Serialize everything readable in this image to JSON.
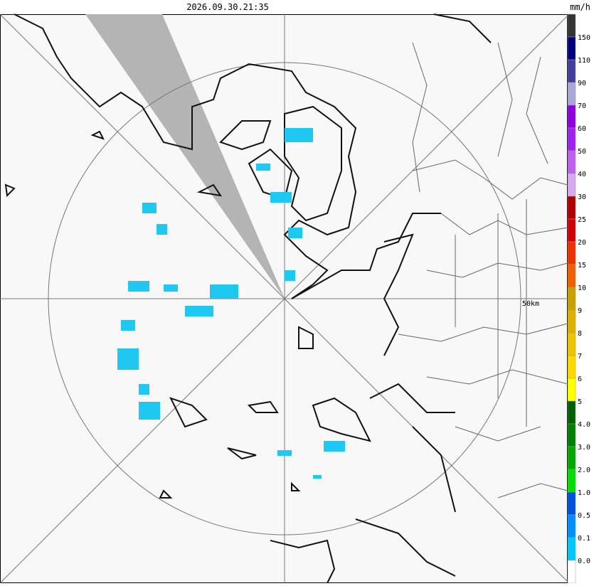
{
  "header": {
    "timestamp": "2026.09.30.21:35",
    "unit": "mm/h"
  },
  "map": {
    "range_label": "50km"
  },
  "legend": {
    "labels": [
      "150",
      "110",
      "90",
      "70",
      "60",
      "50",
      "40",
      "30",
      "25",
      "20",
      "15",
      "10",
      "9",
      "8",
      "7",
      "6",
      "5",
      "4.0",
      "3.0",
      "2.0",
      "1.0",
      "0.5",
      "0.1",
      "0.0"
    ],
    "colors": [
      "#333333",
      "#00007f",
      "#3f3f9f",
      "#a8a8d8",
      "#8f00df",
      "#a020ef",
      "#c060ef",
      "#d8a8f0",
      "#af0000",
      "#d00000",
      "#ef3000",
      "#ef6000",
      "#c8a000",
      "#dfb000",
      "#efc400",
      "#ffd800",
      "#ffff00",
      "#006000",
      "#008000",
      "#00a800",
      "#00e000",
      "#0050df",
      "#008fff",
      "#00c8ff",
      "#ffffff"
    ]
  }
}
